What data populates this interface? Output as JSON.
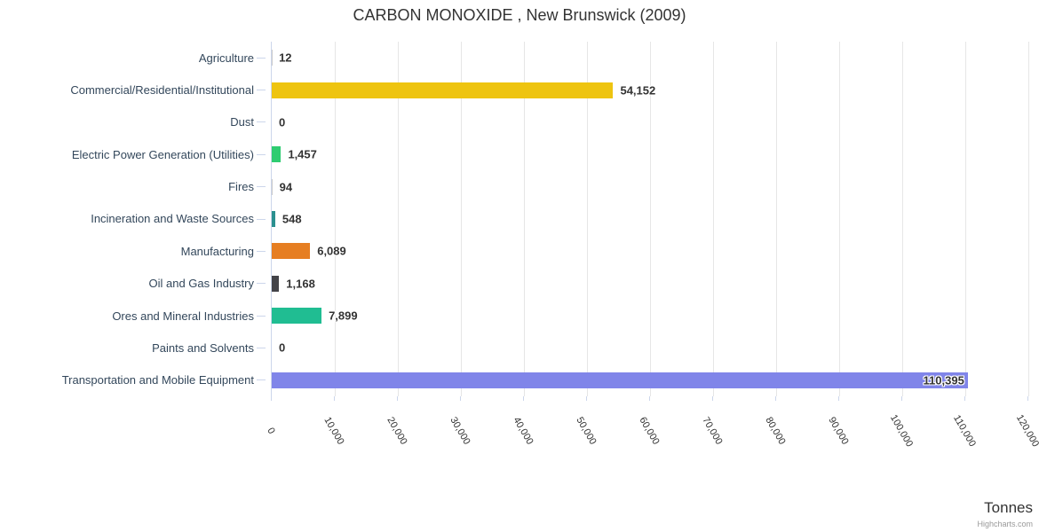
{
  "credits": "Highcharts.com",
  "chart_data": {
    "type": "bar",
    "orientation": "horizontal",
    "title": "CARBON MONOXIDE , New Brunswick (2009)",
    "xlabel": "Tonnes",
    "ylabel": "",
    "categories": [
      "Agriculture",
      "Commercial/Residential/Institutional",
      "Dust",
      "Electric Power Generation (Utilities)",
      "Fires",
      "Incineration and Waste Sources",
      "Manufacturing",
      "Oil and Gas Industry",
      "Ores and Mineral Industries",
      "Paints and Solvents",
      "Transportation and Mobile Equipment"
    ],
    "values": [
      12,
      54152,
      0,
      1457,
      94,
      548,
      6089,
      1168,
      7899,
      0,
      110395
    ],
    "value_labels": [
      "12",
      "54,152",
      "0",
      "1,457",
      "94",
      "548",
      "6,089",
      "1,168",
      "7,899",
      "0",
      "110,395"
    ],
    "bar_colors": [
      "#cccccc",
      "#eec410",
      "#cccccc",
      "#2ecc71",
      "#cccccc",
      "#2b908f",
      "#e67e22",
      "#434348",
      "#20bd92",
      "#cccccc",
      "#8085e9"
    ],
    "xlim": [
      0,
      120000
    ],
    "tick_interval": 10000,
    "x_ticks": [
      "0",
      "10,000",
      "20,000",
      "30,000",
      "40,000",
      "50,000",
      "60,000",
      "70,000",
      "80,000",
      "90,000",
      "100,000",
      "110,000",
      "120,000"
    ],
    "grid": true,
    "legend_position": "none"
  },
  "theme": {
    "grid_color": "#e6e6e6",
    "axis_line_color": "#ccd6eb",
    "category_label_color": "#33475b",
    "tick_label_color": "#333333",
    "data_label_color": "#333333",
    "title_color": "#333333",
    "credits_color": "#999999"
  }
}
